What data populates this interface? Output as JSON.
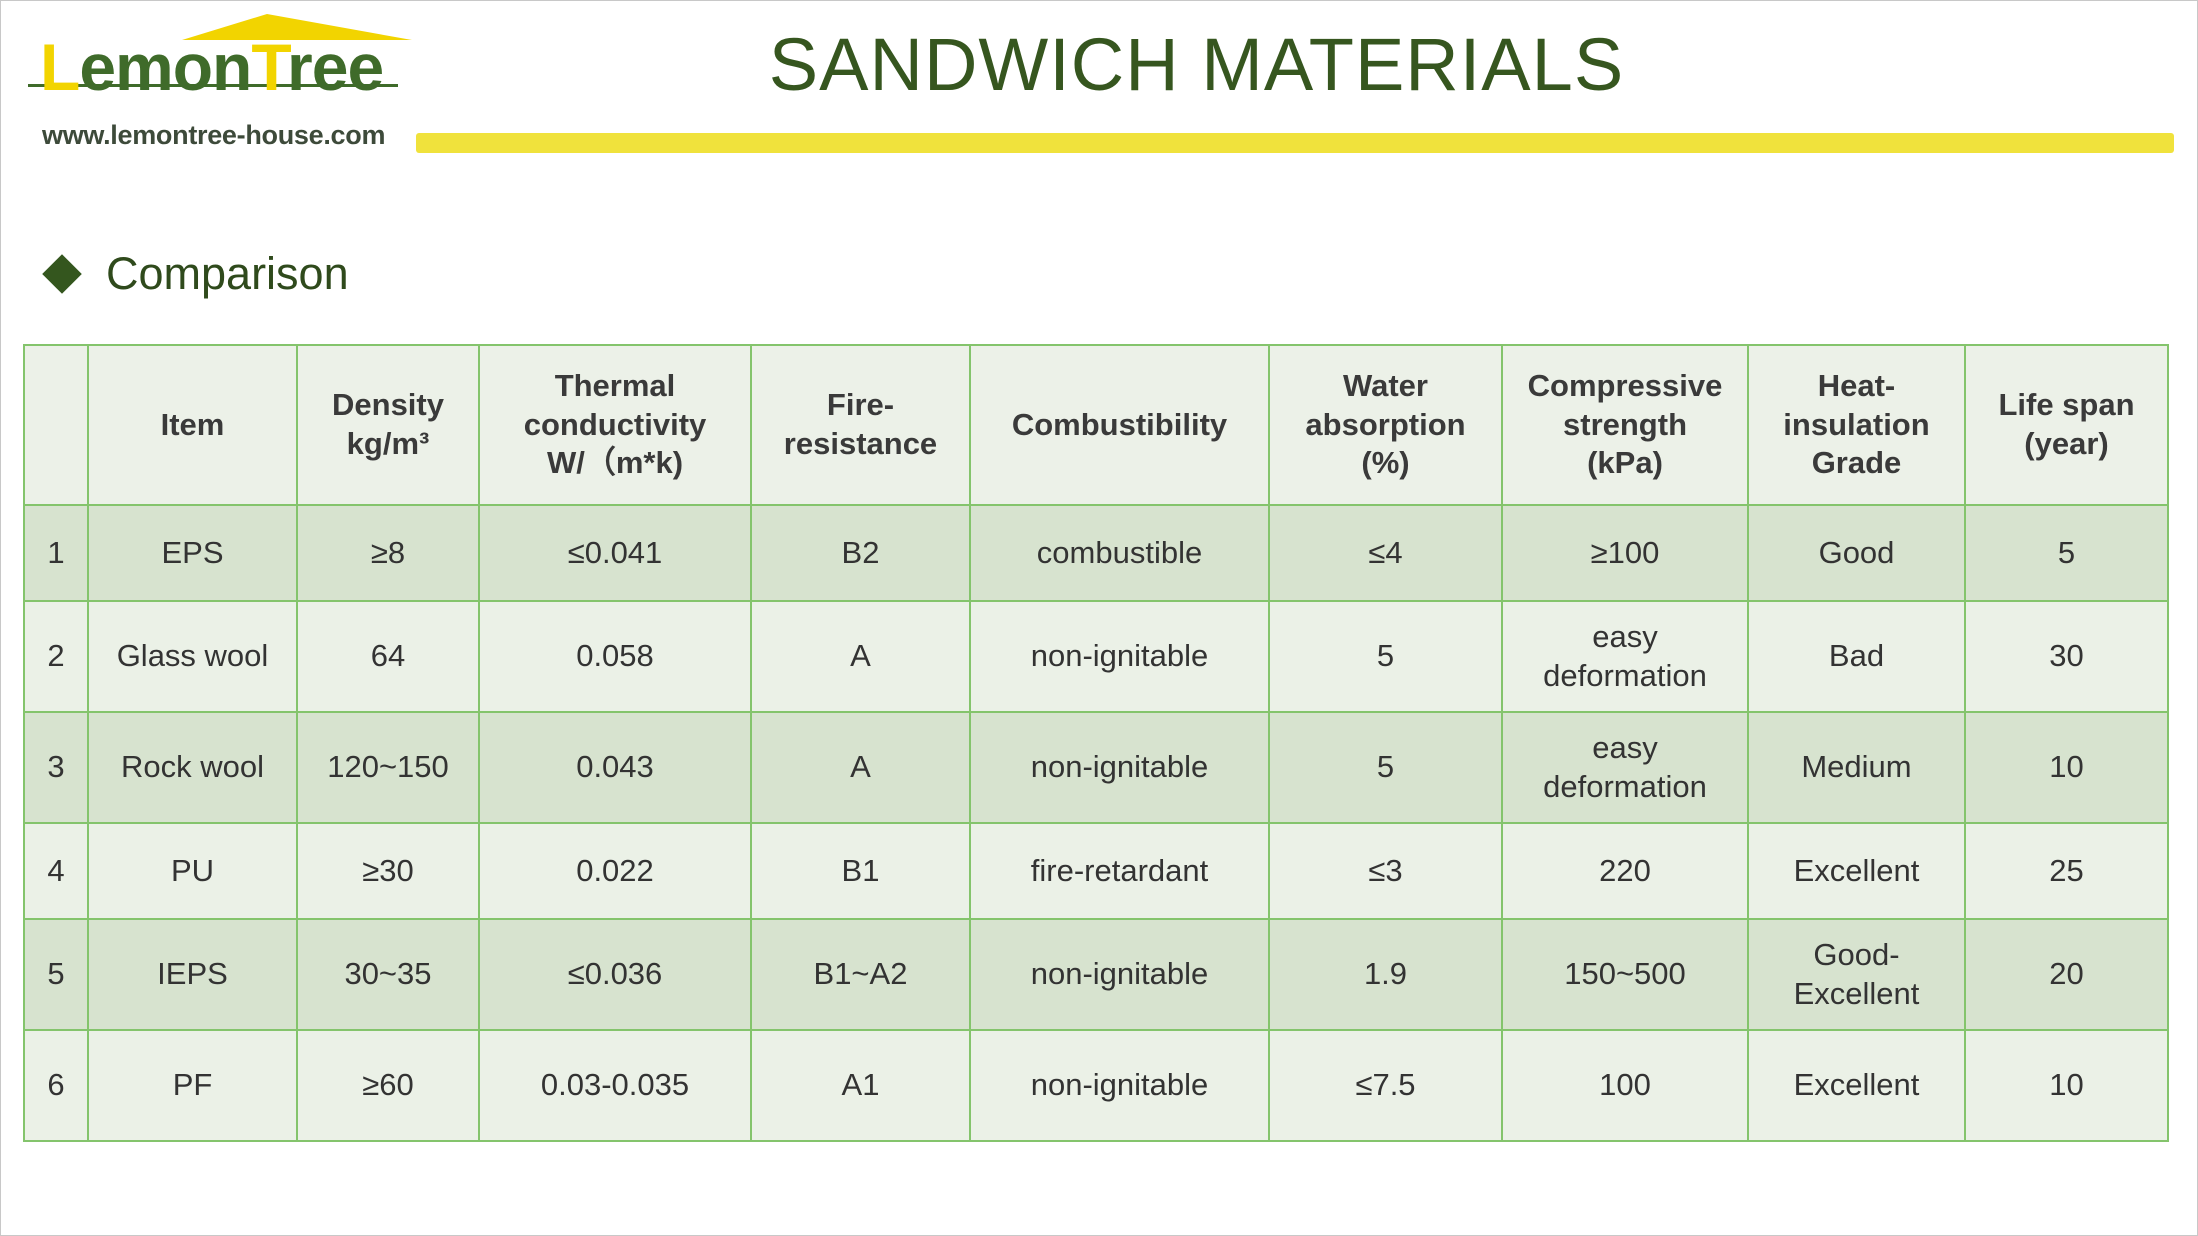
{
  "logo": {
    "word_cap_1": "L",
    "word_mid": "emon",
    "word_cap_2": "T",
    "word_end": "ree",
    "url": "www.lemontree-house.com"
  },
  "title": "SANDWICH MATERIALS",
  "section": "Comparison",
  "colors": {
    "green": "#36561f",
    "yellow": "#f0e23c",
    "border": "#84c46c"
  },
  "table": {
    "headers": [
      "",
      "Item",
      "Density\nkg/m³",
      "Thermal\nconductivity\nW/（m*k)",
      "Fire-\nresistance",
      "Combustibility",
      "Water\nabsorption\n(%)",
      "Compressive\nstrength\n(kPa)",
      "Heat-\ninsulation\nGrade",
      "Life span\n(year)"
    ],
    "rows": [
      [
        "1",
        "EPS",
        "≥8",
        "≤0.041",
        "B2",
        "combustible",
        "≤4",
        "≥100",
        "Good",
        "5"
      ],
      [
        "2",
        "Glass wool",
        "64",
        "0.058",
        "A",
        "non-ignitable",
        "5",
        "easy\ndeformation",
        "Bad",
        "30"
      ],
      [
        "3",
        "Rock wool",
        "120~150",
        "0.043",
        "A",
        "non-ignitable",
        "5",
        "easy\ndeformation",
        "Medium",
        "10"
      ],
      [
        "4",
        "PU",
        "≥30",
        "0.022",
        "B1",
        "fire-retardant",
        "≤3",
        "220",
        "Excellent",
        "25"
      ],
      [
        "5",
        "IEPS",
        "30~35",
        "≤0.036",
        "B1~A2",
        "non-ignitable",
        "1.9",
        "150~500",
        "Good-\nExcellent",
        "20"
      ],
      [
        "6",
        "PF",
        "≥60",
        "0.03-0.035",
        "A1",
        "non-ignitable",
        "≤7.5",
        "100",
        "Excellent",
        "10"
      ]
    ]
  }
}
